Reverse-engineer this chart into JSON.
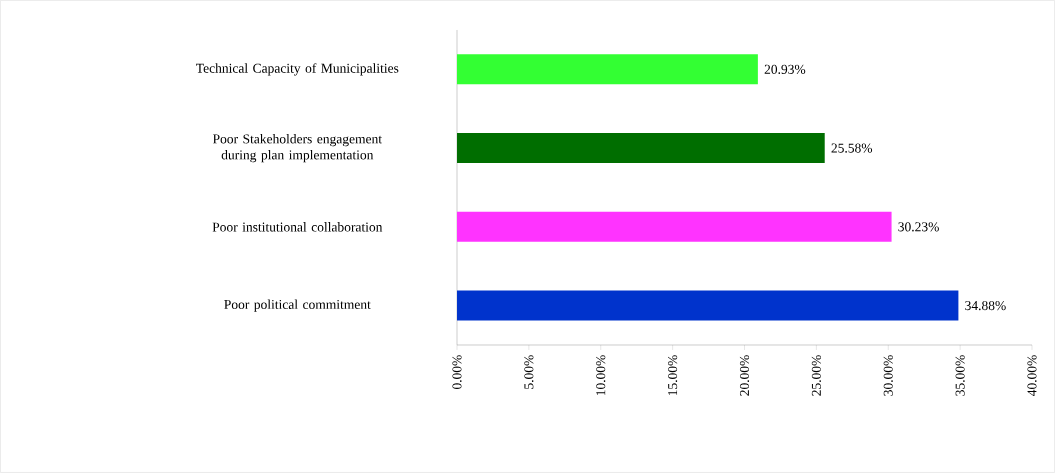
{
  "chart_data": {
    "type": "bar",
    "orientation": "horizontal",
    "categories": [
      "Technical Capacity of Municipalities",
      "Poor Stakeholders engagement during plan implementation",
      "Poor institutional collaboration",
      "Poor political commitment"
    ],
    "values": [
      20.93,
      25.58,
      30.23,
      34.88
    ],
    "colors": [
      "#33ff33",
      "#006e00",
      "#ff33ff",
      "#0033cc"
    ],
    "value_labels": [
      "20.93%",
      "25.58%",
      "30.23%",
      "34.88%"
    ],
    "xlim": [
      0,
      40
    ],
    "xticks": [
      {
        "value": 0,
        "label": "0.00%"
      },
      {
        "value": 5,
        "label": "5.00%"
      },
      {
        "value": 10,
        "label": "10.00%"
      },
      {
        "value": 15,
        "label": "15.00%"
      },
      {
        "value": 20,
        "label": "20.00%"
      },
      {
        "value": 25,
        "label": "25.00%"
      },
      {
        "value": 30,
        "label": "30.00%"
      },
      {
        "value": 35,
        "label": "35.00%"
      },
      {
        "value": 40,
        "label": "40.00%"
      }
    ],
    "grid": false
  }
}
